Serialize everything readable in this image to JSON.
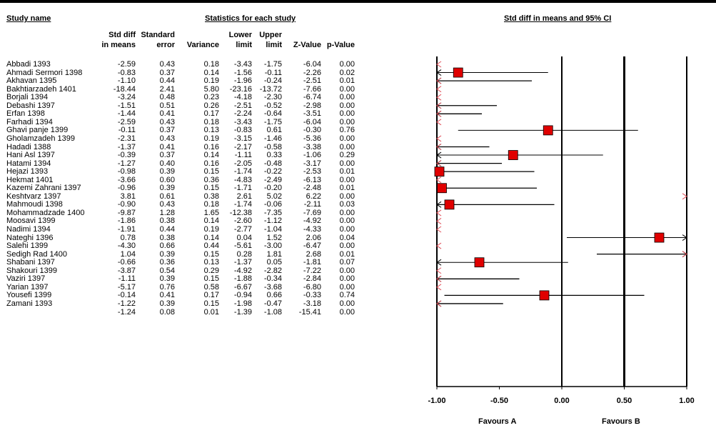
{
  "headers": {
    "study_name": "Study name",
    "stats_group": "Statistics for each study",
    "plot_title": "Std diff in means and 95% CI"
  },
  "columns": {
    "std_diff": [
      "Std diff",
      "in means"
    ],
    "std_error": [
      "Standard",
      "error"
    ],
    "variance": [
      "",
      "Variance"
    ],
    "lower": [
      "Lower",
      "limit"
    ],
    "upper": [
      "Upper",
      "limit"
    ],
    "z_value": [
      "",
      "Z-Value"
    ],
    "p_value": [
      "",
      "p-Value"
    ]
  },
  "favours": {
    "left": "Favours A",
    "right": "Favours B"
  },
  "chart_data": {
    "type": "forest",
    "xlim": [
      -1.0,
      1.0
    ],
    "x_ticks": [
      -1.0,
      -0.5,
      0.0,
      0.5,
      1.0
    ],
    "x_tick_labels": [
      "-1.00",
      "-0.50",
      "0.00",
      "0.50",
      "1.00"
    ],
    "reference_lines": [
      -1.0,
      0.0,
      0.5,
      1.0
    ],
    "studies": [
      {
        "name": "Abbadi 1393",
        "std_diff": "-2.59",
        "std_error": "0.43",
        "variance": "0.18",
        "lower": "-3.43",
        "upper": "-1.75",
        "z": "-6.04",
        "p": "0.00",
        "est": -2.59,
        "lo": -3.43,
        "hi": -1.75,
        "weight": 0.43
      },
      {
        "name": "Ahmadi Sermori 1398",
        "std_diff": "-0.83",
        "std_error": "0.37",
        "variance": "0.14",
        "lower": "-1.56",
        "upper": "-0.11",
        "z": "-2.26",
        "p": "0.02",
        "est": -0.83,
        "lo": -1.56,
        "hi": -0.11,
        "weight": 0.37
      },
      {
        "name": "Akhavan 1395",
        "std_diff": "-1.10",
        "std_error": "0.44",
        "variance": "0.19",
        "lower": "-1.96",
        "upper": "-0.24",
        "z": "-2.51",
        "p": "0.01",
        "est": -1.1,
        "lo": -1.96,
        "hi": -0.24,
        "weight": 0.44
      },
      {
        "name": "Bakhtiarzadeh 1401",
        "std_diff": "-18.44",
        "std_error": "2.41",
        "variance": "5.80",
        "lower": "-23.16",
        "upper": "-13.72",
        "z": "-7.66",
        "p": "0.00",
        "est": -18.44,
        "lo": -23.16,
        "hi": -13.72,
        "weight": 2.41
      },
      {
        "name": "Borjali 1394",
        "std_diff": "-3.24",
        "std_error": "0.48",
        "variance": "0.23",
        "lower": "-4.18",
        "upper": "-2.30",
        "z": "-6.74",
        "p": "0.00",
        "est": -3.24,
        "lo": -4.18,
        "hi": -2.3,
        "weight": 0.48
      },
      {
        "name": "Debashi 1397",
        "std_diff": "-1.51",
        "std_error": "0.51",
        "variance": "0.26",
        "lower": "-2.51",
        "upper": "-0.52",
        "z": "-2.98",
        "p": "0.00",
        "est": -1.51,
        "lo": -2.51,
        "hi": -0.52,
        "weight": 0.51
      },
      {
        "name": "Erfan 1398",
        "std_diff": "-1.44",
        "std_error": "0.41",
        "variance": "0.17",
        "lower": "-2.24",
        "upper": "-0.64",
        "z": "-3.51",
        "p": "0.00",
        "est": -1.44,
        "lo": -2.24,
        "hi": -0.64,
        "weight": 0.41
      },
      {
        "name": "Farhadi 1394",
        "std_diff": "-2.59",
        "std_error": "0.43",
        "variance": "0.18",
        "lower": "-3.43",
        "upper": "-1.75",
        "z": "-6.04",
        "p": "0.00",
        "est": -2.59,
        "lo": -3.43,
        "hi": -1.75,
        "weight": 0.43
      },
      {
        "name": "Ghavi panje 1399",
        "std_diff": "-0.11",
        "std_error": "0.37",
        "variance": "0.13",
        "lower": "-0.83",
        "upper": "0.61",
        "z": "-0.30",
        "p": "0.76",
        "est": -0.11,
        "lo": -0.83,
        "hi": 0.61,
        "weight": 0.37
      },
      {
        "name": "Gholamzadeh 1399",
        "std_diff": "-2.31",
        "std_error": "0.43",
        "variance": "0.19",
        "lower": "-3.15",
        "upper": "-1.46",
        "z": "-5.36",
        "p": "0.00",
        "est": -2.31,
        "lo": -3.15,
        "hi": -1.46,
        "weight": 0.43
      },
      {
        "name": "Hadadi 1388",
        "std_diff": "-1.37",
        "std_error": "0.41",
        "variance": "0.16",
        "lower": "-2.17",
        "upper": "-0.58",
        "z": "-3.38",
        "p": "0.00",
        "est": -1.37,
        "lo": -2.17,
        "hi": -0.58,
        "weight": 0.41
      },
      {
        "name": "Hani Asl 1397",
        "std_diff": "-0.39",
        "std_error": "0.37",
        "variance": "0.14",
        "lower": "-1.11",
        "upper": "0.33",
        "z": "-1.06",
        "p": "0.29",
        "est": -0.39,
        "lo": -1.11,
        "hi": 0.33,
        "weight": 0.37
      },
      {
        "name": "Hatami 1394",
        "std_diff": "-1.27",
        "std_error": "0.40",
        "variance": "0.16",
        "lower": "-2.05",
        "upper": "-0.48",
        "z": "-3.17",
        "p": "0.00",
        "est": -1.27,
        "lo": -2.05,
        "hi": -0.48,
        "weight": 0.4
      },
      {
        "name": "Hejazi 1393",
        "std_diff": "-0.98",
        "std_error": "0.39",
        "variance": "0.15",
        "lower": "-1.74",
        "upper": "-0.22",
        "z": "-2.53",
        "p": "0.01",
        "est": -0.98,
        "lo": -1.74,
        "hi": -0.22,
        "weight": 0.39
      },
      {
        "name": "Hekmat 1401",
        "std_diff": "-3.66",
        "std_error": "0.60",
        "variance": "0.36",
        "lower": "-4.83",
        "upper": "-2.49",
        "z": "-6.13",
        "p": "0.00",
        "est": -3.66,
        "lo": -4.83,
        "hi": -2.49,
        "weight": 0.6
      },
      {
        "name": "Kazemi Zahrani 1397",
        "std_diff": "-0.96",
        "std_error": "0.39",
        "variance": "0.15",
        "lower": "-1.71",
        "upper": "-0.20",
        "z": "-2.48",
        "p": "0.01",
        "est": -0.96,
        "lo": -1.71,
        "hi": -0.2,
        "weight": 0.39
      },
      {
        "name": "Keshtvarz 1397",
        "std_diff": "3.81",
        "std_error": "0.61",
        "variance": "0.38",
        "lower": "2.61",
        "upper": "5.02",
        "z": "6.22",
        "p": "0.00",
        "est": 3.81,
        "lo": 2.61,
        "hi": 5.02,
        "weight": 0.61
      },
      {
        "name": "Mahmoudi 1398",
        "std_diff": "-0.90",
        "std_error": "0.43",
        "variance": "0.18",
        "lower": "-1.74",
        "upper": "-0.06",
        "z": "-2.11",
        "p": "0.03",
        "est": -0.9,
        "lo": -1.74,
        "hi": -0.06,
        "weight": 0.43
      },
      {
        "name": "Mohammadzade 1400",
        "std_diff": "-9.87",
        "std_error": "1.28",
        "variance": "1.65",
        "lower": "-12.38",
        "upper": "-7.35",
        "z": "-7.69",
        "p": "0.00",
        "est": -9.87,
        "lo": -12.38,
        "hi": -7.35,
        "weight": 1.28
      },
      {
        "name": "Moosavi 1399",
        "std_diff": "-1.86",
        "std_error": "0.38",
        "variance": "0.14",
        "lower": "-2.60",
        "upper": "-1.12",
        "z": "-4.92",
        "p": "0.00",
        "est": -1.86,
        "lo": -2.6,
        "hi": -1.12,
        "weight": 0.38
      },
      {
        "name": "Nadimi 1394",
        "std_diff": "-1.91",
        "std_error": "0.44",
        "variance": "0.19",
        "lower": "-2.77",
        "upper": "-1.04",
        "z": "-4.33",
        "p": "0.00",
        "est": -1.91,
        "lo": -2.77,
        "hi": -1.04,
        "weight": 0.44
      },
      {
        "name": "Nateghi 1396",
        "std_diff": "0.78",
        "std_error": "0.38",
        "variance": "0.14",
        "lower": "0.04",
        "upper": "1.52",
        "z": "2.06",
        "p": "0.04",
        "est": 0.78,
        "lo": 0.04,
        "hi": 1.52,
        "weight": 0.38
      },
      {
        "name": "Salehi 1399",
        "std_diff": "-4.30",
        "std_error": "0.66",
        "variance": "0.44",
        "lower": "-5.61",
        "upper": "-3.00",
        "z": "-6.47",
        "p": "0.00",
        "est": -4.3,
        "lo": -5.61,
        "hi": -3.0,
        "weight": 0.66
      },
      {
        "name": "Sedigh Rad 1400",
        "std_diff": "1.04",
        "std_error": "0.39",
        "variance": "0.15",
        "lower": "0.28",
        "upper": "1.81",
        "z": "2.68",
        "p": "0.01",
        "est": 1.04,
        "lo": 0.28,
        "hi": 1.81,
        "weight": 0.39
      },
      {
        "name": "Shabani 1397",
        "std_diff": "-0.66",
        "std_error": "0.36",
        "variance": "0.13",
        "lower": "-1.37",
        "upper": "0.05",
        "z": "-1.81",
        "p": "0.07",
        "est": -0.66,
        "lo": -1.37,
        "hi": 0.05,
        "weight": 0.36
      },
      {
        "name": "Shakouri 1399",
        "std_diff": "-3.87",
        "std_error": "0.54",
        "variance": "0.29",
        "lower": "-4.92",
        "upper": "-2.82",
        "z": "-7.22",
        "p": "0.00",
        "est": -3.87,
        "lo": -4.92,
        "hi": -2.82,
        "weight": 0.54
      },
      {
        "name": "Vaziri 1397",
        "std_diff": "-1.11",
        "std_error": "0.39",
        "variance": "0.15",
        "lower": "-1.88",
        "upper": "-0.34",
        "z": "-2.84",
        "p": "0.00",
        "est": -1.11,
        "lo": -1.88,
        "hi": -0.34,
        "weight": 0.39
      },
      {
        "name": "Yarian 1397",
        "std_diff": "-5.17",
        "std_error": "0.76",
        "variance": "0.58",
        "lower": "-6.67",
        "upper": "-3.68",
        "z": "-6.80",
        "p": "0.00",
        "est": -5.17,
        "lo": -6.67,
        "hi": -3.68,
        "weight": 0.76
      },
      {
        "name": "Yousefi 1399",
        "std_diff": "-0.14",
        "std_error": "0.41",
        "variance": "0.17",
        "lower": "-0.94",
        "upper": "0.66",
        "z": "-0.33",
        "p": "0.74",
        "est": -0.14,
        "lo": -0.94,
        "hi": 0.66,
        "weight": 0.41
      },
      {
        "name": "Zamani 1393",
        "std_diff": "-1.22",
        "std_error": "0.39",
        "variance": "0.15",
        "lower": "-1.98",
        "upper": "-0.47",
        "z": "-3.18",
        "p": "0.00",
        "est": -1.22,
        "lo": -1.98,
        "hi": -0.47,
        "weight": 0.39
      }
    ],
    "summary": {
      "name": "",
      "std_diff": "-1.24",
      "std_error": "0.08",
      "variance": "0.01",
      "lower": "-1.39",
      "upper": "-1.08",
      "z": "-15.41",
      "p": "0.00",
      "est": -1.24,
      "lo": -1.39,
      "hi": -1.08
    },
    "colors": {
      "marker": "#e00000",
      "marker_border": "#000000",
      "line": "#000000",
      "arrow": "#e0505a"
    }
  }
}
